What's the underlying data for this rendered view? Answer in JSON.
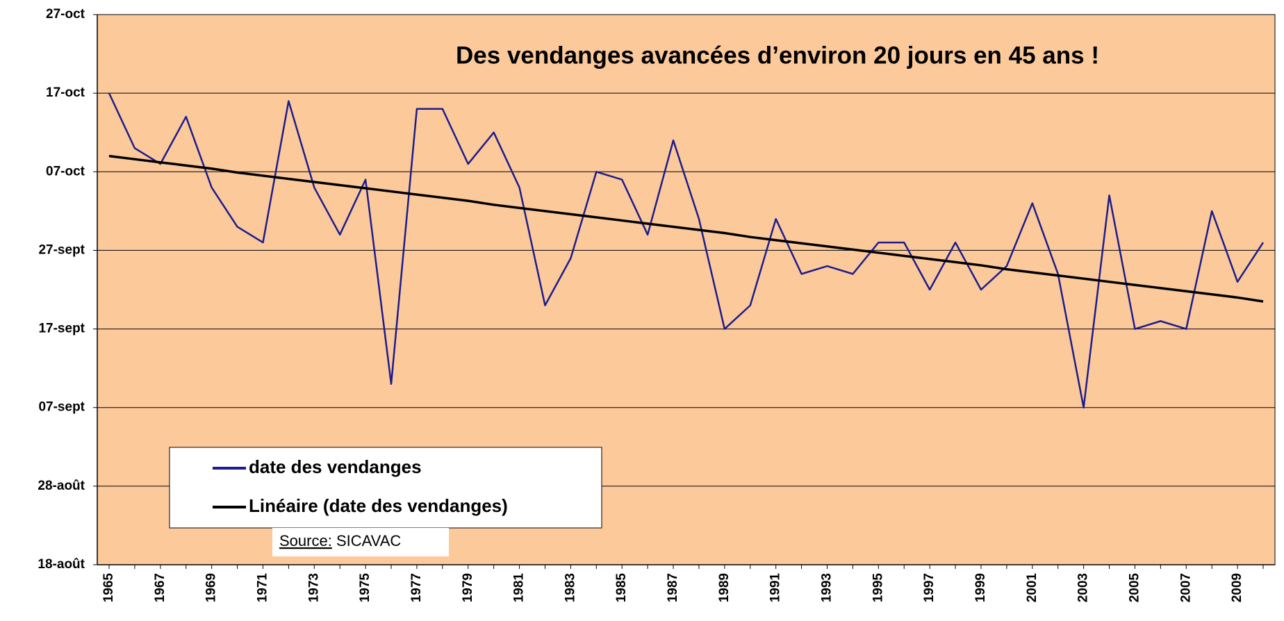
{
  "chart_data": {
    "type": "line",
    "title": "Des vendanges avancées d’environ 20 jours en 45 ans !",
    "title_color": "#ff0000",
    "source": {
      "label": "Source:",
      "text": "SICAVAC"
    },
    "background": "#fcc99b",
    "categories": [
      "1965",
      null,
      "1967",
      null,
      "1969",
      null,
      "1971",
      null,
      "1973",
      null,
      "1975",
      null,
      "1977",
      null,
      "1979",
      null,
      "1981",
      null,
      "1983",
      null,
      "1985",
      null,
      "1987",
      null,
      "1989",
      null,
      "1991",
      null,
      "1993",
      null,
      "1995",
      null,
      "1997",
      null,
      "1999",
      null,
      "2001",
      null,
      "2003",
      null,
      "2005",
      null,
      "2007",
      null,
      "2009",
      null
    ],
    "series": [
      {
        "name": "date des vendanges",
        "color": "#1c1c8c",
        "width": 2.5,
        "values": [
          290,
          283,
          281,
          287,
          278,
          273,
          271,
          289,
          278,
          272,
          279,
          253,
          288,
          288,
          281,
          285,
          278,
          263,
          269,
          280,
          279,
          272,
          284,
          274,
          260,
          263,
          274,
          267,
          268,
          267,
          271,
          271,
          265,
          271,
          265,
          268,
          276,
          267,
          250,
          277,
          260,
          261,
          260,
          275,
          266,
          271
        ]
      },
      {
        "name": "Linéaire (date des vendanges)",
        "color": "#000000",
        "width": 3.5,
        "values": [
          282.0,
          281.6,
          281.2,
          280.8,
          280.4,
          279.9,
          279.5,
          279.1,
          278.7,
          278.3,
          277.9,
          277.5,
          277.1,
          276.7,
          276.3,
          275.8,
          275.4,
          275.0,
          274.6,
          274.2,
          273.8,
          273.4,
          273.0,
          272.6,
          272.2,
          271.7,
          271.3,
          270.9,
          270.5,
          270.1,
          269.7,
          269.3,
          268.9,
          268.5,
          268.1,
          267.6,
          267.2,
          266.8,
          266.4,
          266.0,
          265.6,
          265.2,
          264.8,
          264.4,
          264.0,
          263.5
        ]
      }
    ],
    "ylim": [
      230,
      300
    ],
    "yticks": [
      {
        "value": 230,
        "label": "18-août"
      },
      {
        "value": 240,
        "label": "28-août"
      },
      {
        "value": 250,
        "label": "07-sept"
      },
      {
        "value": 260,
        "label": "17-sept"
      },
      {
        "value": 270,
        "label": "27-sept"
      },
      {
        "value": 280,
        "label": "07-oct"
      },
      {
        "value": 290,
        "label": "17-oct"
      },
      {
        "value": 300,
        "label": "27-oct"
      }
    ],
    "grid": true,
    "legend": "lower left"
  }
}
